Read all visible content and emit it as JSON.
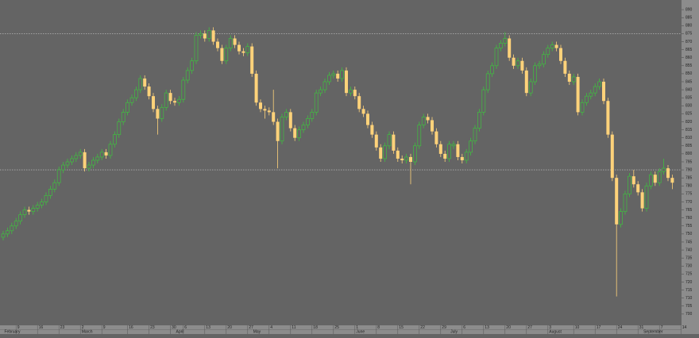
{
  "chart_data": {
    "type": "candlestick",
    "up_color": "#3fbf3f",
    "down_color": "#ffd27a",
    "ylim": [
      693,
      896
    ],
    "yticks": [
      700,
      705,
      710,
      715,
      720,
      725,
      730,
      735,
      740,
      745,
      750,
      755,
      760,
      765,
      770,
      775,
      780,
      785,
      790,
      795,
      800,
      805,
      810,
      815,
      820,
      825,
      830,
      835,
      840,
      845,
      850,
      855,
      860,
      865,
      870,
      875,
      880,
      885,
      890
    ],
    "reference_lines": [
      875,
      790
    ],
    "xticks": [
      {
        "value": 3,
        "label": "9"
      },
      {
        "value": 8,
        "label": "16"
      },
      {
        "value": 13,
        "label": "23"
      },
      {
        "value": 18,
        "label": "2"
      },
      {
        "value": 23,
        "label": "9"
      },
      {
        "value": 29,
        "label": "16"
      },
      {
        "value": 34,
        "label": "23"
      },
      {
        "value": 39,
        "label": "30"
      },
      {
        "value": 42,
        "label": "6"
      },
      {
        "value": 47,
        "label": "13"
      },
      {
        "value": 52,
        "label": "20"
      },
      {
        "value": 57,
        "label": "27"
      },
      {
        "value": 62,
        "label": "4"
      },
      {
        "value": 67,
        "label": "11"
      },
      {
        "value": 72,
        "label": "18"
      },
      {
        "value": 77,
        "label": "25"
      },
      {
        "value": 82,
        "label": "1"
      },
      {
        "value": 87,
        "label": "8"
      },
      {
        "value": 92,
        "label": "15"
      },
      {
        "value": 97,
        "label": "22"
      },
      {
        "value": 102,
        "label": "29"
      },
      {
        "value": 107,
        "label": "6"
      },
      {
        "value": 112,
        "label": "13"
      },
      {
        "value": 117,
        "label": "20"
      },
      {
        "value": 122,
        "label": "27"
      },
      {
        "value": 127,
        "label": "3"
      },
      {
        "value": 133,
        "label": "10"
      },
      {
        "value": 138,
        "label": "17"
      },
      {
        "value": 143,
        "label": "24"
      },
      {
        "value": 148,
        "label": "31"
      },
      {
        "value": 153,
        "label": "7"
      },
      {
        "value": 158,
        "label": "14"
      }
    ],
    "month_ticks": [
      {
        "value": 0,
        "label": "February"
      },
      {
        "value": 18,
        "label": "March"
      },
      {
        "value": 40,
        "label": "April"
      },
      {
        "value": 58,
        "label": "May"
      },
      {
        "value": 82,
        "label": "June"
      },
      {
        "value": 104,
        "label": "July"
      },
      {
        "value": 127,
        "label": "August"
      },
      {
        "value": 149,
        "label": "September"
      }
    ],
    "ohlc": [
      [
        748,
        752,
        746,
        750
      ],
      [
        750,
        754,
        748,
        752
      ],
      [
        752,
        757,
        750,
        755
      ],
      [
        755,
        760,
        753,
        758
      ],
      [
        758,
        764,
        756,
        762
      ],
      [
        762,
        767,
        760,
        765
      ],
      [
        765,
        767,
        762,
        764
      ],
      [
        764,
        768,
        762,
        766
      ],
      [
        766,
        770,
        764,
        768
      ],
      [
        768,
        772,
        766,
        770
      ],
      [
        770,
        776,
        768,
        774
      ],
      [
        774,
        780,
        772,
        778
      ],
      [
        778,
        784,
        776,
        782
      ],
      [
        782,
        792,
        780,
        790
      ],
      [
        790,
        795,
        788,
        793
      ],
      [
        793,
        797,
        791,
        795
      ],
      [
        795,
        799,
        793,
        797
      ],
      [
        797,
        801,
        795,
        799
      ],
      [
        799,
        803,
        797,
        801
      ],
      [
        801,
        803,
        789,
        791
      ],
      [
        791,
        795,
        789,
        793
      ],
      [
        793,
        798,
        791,
        796
      ],
      [
        796,
        800,
        794,
        798
      ],
      [
        798,
        803,
        796,
        801
      ],
      [
        801,
        803,
        797,
        799
      ],
      [
        799,
        808,
        797,
        806
      ],
      [
        806,
        814,
        804,
        812
      ],
      [
        812,
        822,
        810,
        820
      ],
      [
        820,
        828,
        818,
        826
      ],
      [
        826,
        834,
        824,
        832
      ],
      [
        832,
        837,
        830,
        835
      ],
      [
        835,
        842,
        833,
        840
      ],
      [
        840,
        849,
        838,
        847
      ],
      [
        847,
        849,
        840,
        842
      ],
      [
        842,
        844,
        834,
        836
      ],
      [
        836,
        838,
        826,
        828
      ],
      [
        828,
        830,
        812,
        822
      ],
      [
        822,
        831,
        820,
        829
      ],
      [
        829,
        840,
        827,
        838
      ],
      [
        838,
        840,
        831,
        833
      ],
      [
        833,
        835,
        830,
        832
      ],
      [
        832,
        836,
        830,
        834
      ],
      [
        834,
        848,
        832,
        846
      ],
      [
        846,
        854,
        844,
        852
      ],
      [
        852,
        860,
        850,
        858
      ],
      [
        858,
        876,
        856,
        874
      ],
      [
        874,
        877,
        872,
        875
      ],
      [
        875,
        877,
        870,
        872
      ],
      [
        872,
        879,
        870,
        877
      ],
      [
        877,
        879,
        868,
        870
      ],
      [
        870,
        872,
        864,
        866
      ],
      [
        866,
        868,
        856,
        858
      ],
      [
        858,
        868,
        856,
        866
      ],
      [
        866,
        874,
        864,
        872
      ],
      [
        872,
        874,
        866,
        868
      ],
      [
        868,
        870,
        862,
        864
      ],
      [
        864,
        866,
        861,
        863
      ],
      [
        863,
        869,
        861,
        867
      ],
      [
        867,
        869,
        848,
        850
      ],
      [
        850,
        852,
        830,
        832
      ],
      [
        832,
        834,
        826,
        828
      ],
      [
        828,
        830,
        822,
        827
      ],
      [
        827,
        829,
        824,
        826
      ],
      [
        826,
        840,
        818,
        820
      ],
      [
        820,
        822,
        791,
        808
      ],
      [
        808,
        825,
        806,
        823
      ],
      [
        823,
        828,
        821,
        826
      ],
      [
        826,
        828,
        814,
        816
      ],
      [
        816,
        818,
        808,
        810
      ],
      [
        810,
        817,
        808,
        815
      ],
      [
        815,
        820,
        813,
        818
      ],
      [
        818,
        824,
        816,
        822
      ],
      [
        822,
        828,
        820,
        826
      ],
      [
        826,
        840,
        824,
        838
      ],
      [
        838,
        842,
        836,
        840
      ],
      [
        840,
        847,
        838,
        845
      ],
      [
        845,
        851,
        843,
        849
      ],
      [
        849,
        852,
        847,
        850
      ],
      [
        850,
        852,
        845,
        847
      ],
      [
        847,
        854,
        845,
        852
      ],
      [
        852,
        854,
        836,
        838
      ],
      [
        838,
        842,
        836,
        840
      ],
      [
        840,
        842,
        834,
        836
      ],
      [
        836,
        838,
        826,
        828
      ],
      [
        828,
        830,
        823,
        825
      ],
      [
        825,
        827,
        816,
        818
      ],
      [
        818,
        820,
        810,
        812
      ],
      [
        812,
        814,
        802,
        804
      ],
      [
        804,
        806,
        795,
        797
      ],
      [
        797,
        807,
        795,
        805
      ],
      [
        805,
        814,
        803,
        812
      ],
      [
        812,
        814,
        800,
        802
      ],
      [
        802,
        804,
        795,
        797
      ],
      [
        797,
        799,
        794,
        796
      ],
      [
        796,
        800,
        794,
        798
      ],
      [
        798,
        800,
        781,
        795
      ],
      [
        795,
        807,
        793,
        805
      ],
      [
        805,
        820,
        803,
        818
      ],
      [
        818,
        825,
        816,
        823
      ],
      [
        823,
        825,
        819,
        821
      ],
      [
        821,
        823,
        812,
        814
      ],
      [
        814,
        816,
        804,
        806
      ],
      [
        806,
        808,
        798,
        800
      ],
      [
        800,
        802,
        795,
        797
      ],
      [
        797,
        808,
        795,
        806
      ],
      [
        805,
        808,
        803,
        806
      ],
      [
        806,
        808,
        796,
        798
      ],
      [
        798,
        800,
        794,
        796
      ],
      [
        796,
        803,
        794,
        801
      ],
      [
        801,
        810,
        799,
        808
      ],
      [
        808,
        818,
        806,
        816
      ],
      [
        816,
        828,
        814,
        826
      ],
      [
        826,
        842,
        824,
        840
      ],
      [
        840,
        852,
        838,
        850
      ],
      [
        850,
        857,
        848,
        855
      ],
      [
        855,
        868,
        853,
        866
      ],
      [
        866,
        871,
        864,
        869
      ],
      [
        869,
        876,
        867,
        872
      ],
      [
        872,
        874,
        858,
        860
      ],
      [
        860,
        862,
        853,
        855
      ],
      [
        855,
        860,
        853,
        858
      ],
      [
        858,
        860,
        850,
        852
      ],
      [
        852,
        854,
        836,
        838
      ],
      [
        838,
        847,
        836,
        845
      ],
      [
        845,
        857,
        843,
        855
      ],
      [
        855,
        858,
        853,
        856
      ],
      [
        856,
        864,
        854,
        862
      ],
      [
        862,
        868,
        860,
        866
      ],
      [
        866,
        870,
        864,
        868
      ],
      [
        868,
        870,
        864,
        866
      ],
      [
        866,
        868,
        856,
        858
      ],
      [
        858,
        860,
        848,
        850
      ],
      [
        850,
        852,
        843,
        845
      ],
      [
        845,
        850,
        843,
        848
      ],
      [
        848,
        850,
        824,
        826
      ],
      [
        826,
        834,
        824,
        832
      ],
      [
        832,
        838,
        830,
        836
      ],
      [
        836,
        840,
        834,
        838
      ],
      [
        838,
        844,
        836,
        842
      ],
      [
        842,
        847,
        840,
        845
      ],
      [
        845,
        847,
        831,
        833
      ],
      [
        833,
        835,
        810,
        812
      ],
      [
        812,
        814,
        783,
        785
      ],
      [
        785,
        787,
        711,
        756
      ],
      [
        756,
        766,
        754,
        764
      ],
      [
        764,
        777,
        762,
        775
      ],
      [
        775,
        788,
        773,
        786
      ],
      [
        786,
        790,
        779,
        781
      ],
      [
        781,
        783,
        774,
        776
      ],
      [
        776,
        778,
        764,
        766
      ],
      [
        766,
        782,
        764,
        780
      ],
      [
        780,
        789,
        778,
        787
      ],
      [
        787,
        789,
        780,
        782
      ],
      [
        782,
        791,
        780,
        789
      ],
      [
        789,
        797,
        787,
        791
      ],
      [
        791,
        793,
        783,
        785
      ],
      [
        785,
        787,
        778,
        782
      ]
    ]
  }
}
